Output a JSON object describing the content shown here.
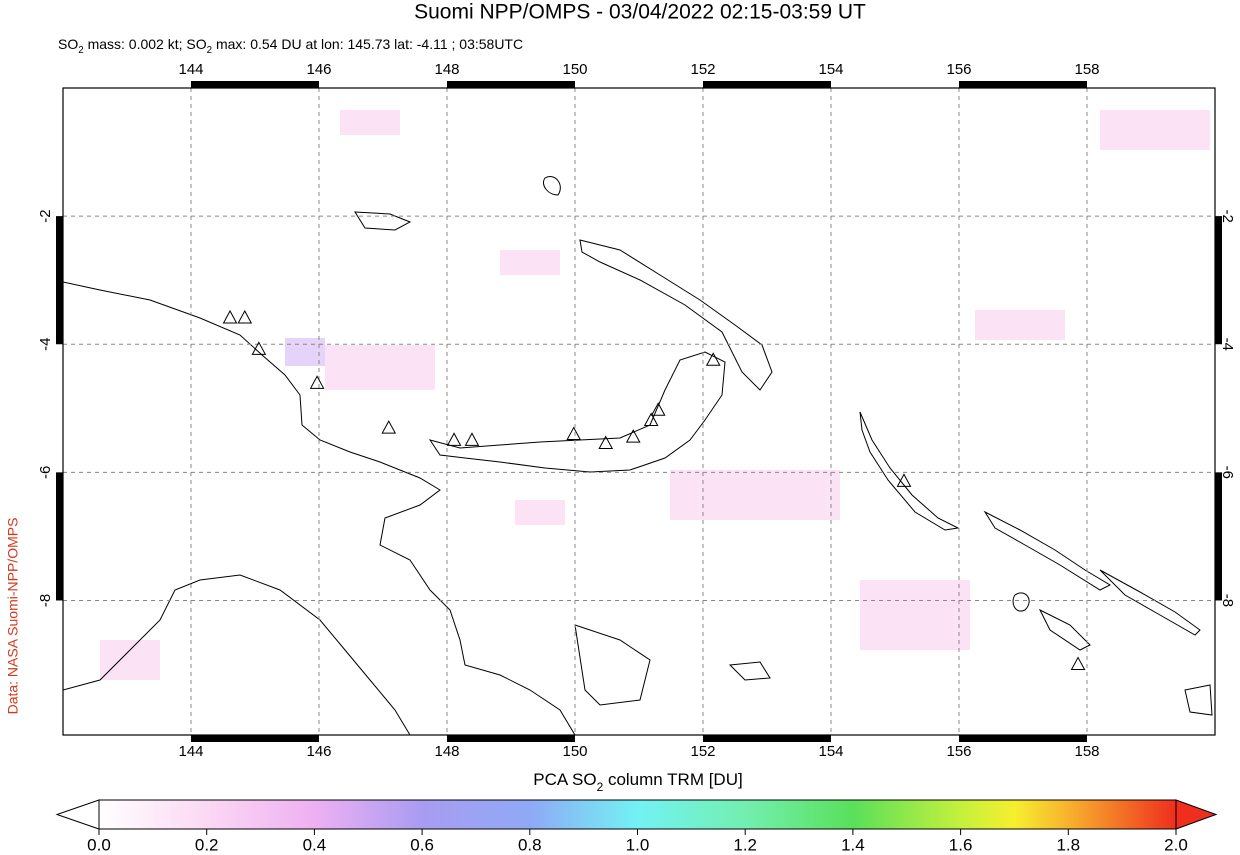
{
  "chart_data": {
    "type": "map",
    "title": "Suomi NPP/OMPS - 03/04/2022 02:15-03:59 UT",
    "subtitle": [
      {
        "text": "SO"
      },
      {
        "text": "2",
        "sub": true
      },
      {
        "text": " mass: 0.002 kt; SO"
      },
      {
        "text": "2",
        "sub": true
      },
      {
        "text": " max: 0.54 DU at lon: 145.73 lat: -4.11 ; 03:58UTC"
      }
    ],
    "credit": "Data: NASA Suomi-NPP/OMPS",
    "xlim": [
      142,
      160
    ],
    "ylim": [
      -10.1,
      0
    ],
    "xticks": [
      144,
      146,
      148,
      150,
      152,
      154,
      156,
      158
    ],
    "yticks": [
      -2,
      -4,
      -6,
      -8
    ],
    "grid": true,
    "volcanoes": {
      "lon": [
        144.61,
        144.84,
        145.06,
        145.97,
        147.09,
        148.11,
        148.39,
        149.98,
        150.48,
        150.91,
        151.19,
        151.3,
        152.16,
        155.14,
        157.86
      ],
      "lat": [
        -3.59,
        -3.59,
        -4.08,
        -4.61,
        -5.31,
        -5.5,
        -5.5,
        -5.41,
        -5.55,
        -5.45,
        -5.19,
        -5.03,
        -4.25,
        -6.14,
        -9.0
      ]
    },
    "colorbar": {
      "title": [
        {
          "text": "PCA SO"
        },
        {
          "text": "2",
          "sub": true
        },
        {
          "text": " column TRM [DU]"
        }
      ],
      "lim": [
        0,
        2
      ],
      "ticks": [
        {
          "value": 0,
          "label": "0.0"
        },
        0.2,
        0.4,
        0.6,
        0.8,
        {
          "value": 1,
          "label": "1.0"
        },
        1.2,
        1.4,
        1.6,
        1.8,
        {
          "value": 2,
          "label": "2.0"
        }
      ]
    }
  }
}
